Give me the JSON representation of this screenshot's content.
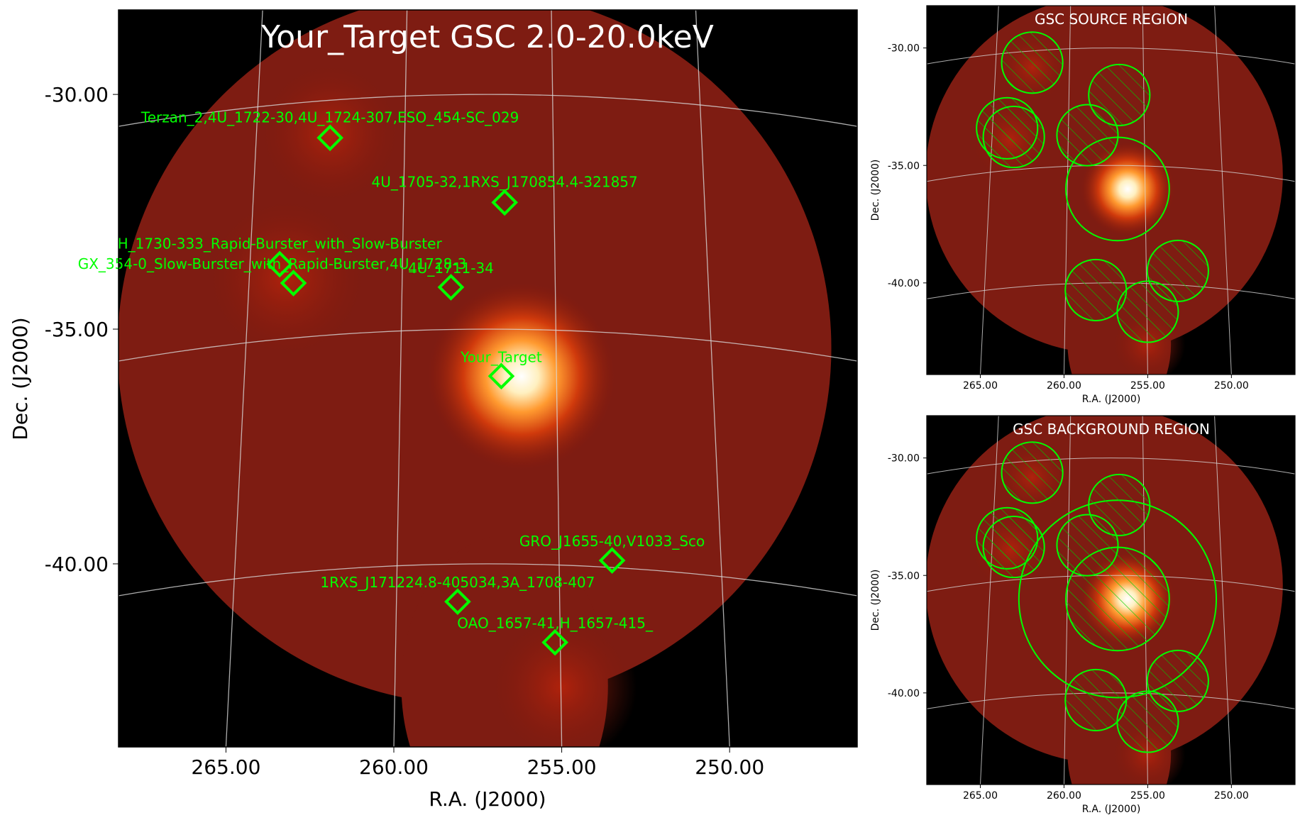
{
  "main_panel": {
    "title": "Your_Target GSC 2.0-20.0keV",
    "xlabel": "R.A. (J2000)",
    "ylabel": "Dec. (J2000)",
    "x_ticks": [
      "265.00",
      "260.00",
      "255.00",
      "250.00"
    ],
    "y_ticks": [
      "-30.00",
      "-35.00",
      "-40.00"
    ]
  },
  "source_panel": {
    "title": "GSC SOURCE REGION",
    "xlabel": "R.A. (J2000)",
    "ylabel": "Dec. (J2000)",
    "x_ticks": [
      "265.00",
      "260.00",
      "255.00",
      "250.00"
    ],
    "y_ticks": [
      "-30.00",
      "-35.00",
      "-40.00"
    ]
  },
  "background_panel": {
    "title": "GSC BACKGROUND REGION",
    "xlabel": "R.A. (J2000)",
    "ylabel": "Dec. (J2000)",
    "x_ticks": [
      "265.00",
      "260.00",
      "255.00",
      "250.00"
    ],
    "y_ticks": [
      "-30.00",
      "-35.00",
      "-40.00"
    ]
  },
  "chart_data": [
    {
      "type": "scatter",
      "panel": "main",
      "title": "Your_Target GSC 2.0-20.0keV",
      "xlabel": "R.A. (J2000)",
      "ylabel": "Dec. (J2000)",
      "xlim": [
        268.2,
        246.2
      ],
      "ylim": [
        -43.9,
        -28.2
      ],
      "x_reversed": true,
      "grid": true,
      "marker": "diamond",
      "marker_color": "#00ff00",
      "colormap": "black-red-yellow-white (gist_heat)",
      "points": [
        {
          "label": "Terzan_2,4U_1722-30,4U_1724-307,ESO_454-SC_029",
          "ra": 261.9,
          "dec": -30.8
        },
        {
          "label": "4U_1705-32,1RXS_J170854.4-321857",
          "ra": 256.7,
          "dec": -32.3
        },
        {
          "label": "H_1730-333_Rapid-Burster_with_Slow-Burster",
          "ra": 263.4,
          "dec": -33.4
        },
        {
          "label": "GX_354-0_Slow-Burster_with_Rapid-Burster,4U_1728-3",
          "ra": 262.99,
          "dec": -33.83
        },
        {
          "label": "4U_1711-34",
          "ra": 258.3,
          "dec": -34.1
        },
        {
          "label": "Your_Target",
          "ra": 256.8,
          "dec": -36.0
        },
        {
          "label": "GRO_J1655-40,V1033_Sco",
          "ra": 253.5,
          "dec": -39.85
        },
        {
          "label": "1RXS_J171224.8-405034,3A_1708-407",
          "ra": 258.1,
          "dec": -40.8
        },
        {
          "label": "OAO_1657-41,H_1657-415_",
          "ra": 255.2,
          "dec": -41.65
        }
      ]
    },
    {
      "type": "scatter",
      "panel": "source",
      "title": "GSC SOURCE REGION",
      "xlabel": "R.A. (J2000)",
      "ylabel": "Dec. (J2000)",
      "xlim": [
        268.2,
        246.2
      ],
      "ylim": [
        -43.9,
        -28.2
      ],
      "grid": true,
      "regions": [
        {
          "kind": "source",
          "ra": 256.8,
          "dec": -36.0,
          "radius_deg": 2.2
        },
        {
          "kind": "exclusion",
          "ra": 261.9,
          "dec": -30.5,
          "radius_deg": 1.3
        },
        {
          "kind": "exclusion",
          "ra": 256.7,
          "dec": -32.0,
          "radius_deg": 1.3
        },
        {
          "kind": "exclusion",
          "ra": 263.4,
          "dec": -33.2,
          "radius_deg": 1.3
        },
        {
          "kind": "exclusion",
          "ra": 263.0,
          "dec": -33.6,
          "radius_deg": 1.3
        },
        {
          "kind": "exclusion",
          "ra": 258.6,
          "dec": -33.7,
          "radius_deg": 1.3
        },
        {
          "kind": "exclusion",
          "ra": 253.2,
          "dec": -39.4,
          "radius_deg": 1.3
        },
        {
          "kind": "exclusion",
          "ra": 258.1,
          "dec": -40.3,
          "radius_deg": 1.3
        },
        {
          "kind": "exclusion",
          "ra": 255.0,
          "dec": -41.2,
          "radius_deg": 1.3
        }
      ]
    },
    {
      "type": "scatter",
      "panel": "background",
      "title": "GSC BACKGROUND REGION",
      "xlabel": "R.A. (J2000)",
      "ylabel": "Dec. (J2000)",
      "xlim": [
        268.2,
        246.2
      ],
      "ylim": [
        -43.9,
        -28.2
      ],
      "grid": true,
      "regions": [
        {
          "kind": "background-annulus-outer",
          "ra": 256.8,
          "dec": -36.0,
          "radius_deg": 4.2
        },
        {
          "kind": "exclusion",
          "ra": 256.8,
          "dec": -36.0,
          "radius_deg": 2.2
        },
        {
          "kind": "exclusion",
          "ra": 261.9,
          "dec": -30.5,
          "radius_deg": 1.3
        },
        {
          "kind": "exclusion",
          "ra": 256.7,
          "dec": -32.0,
          "radius_deg": 1.3
        },
        {
          "kind": "exclusion",
          "ra": 263.4,
          "dec": -33.2,
          "radius_deg": 1.3
        },
        {
          "kind": "exclusion",
          "ra": 263.0,
          "dec": -33.6,
          "radius_deg": 1.3
        },
        {
          "kind": "exclusion",
          "ra": 258.6,
          "dec": -33.7,
          "radius_deg": 1.3
        },
        {
          "kind": "exclusion",
          "ra": 253.2,
          "dec": -39.4,
          "radius_deg": 1.3
        },
        {
          "kind": "exclusion",
          "ra": 258.1,
          "dec": -40.3,
          "radius_deg": 1.3
        },
        {
          "kind": "exclusion",
          "ra": 255.0,
          "dec": -41.2,
          "radius_deg": 1.3
        }
      ]
    }
  ]
}
